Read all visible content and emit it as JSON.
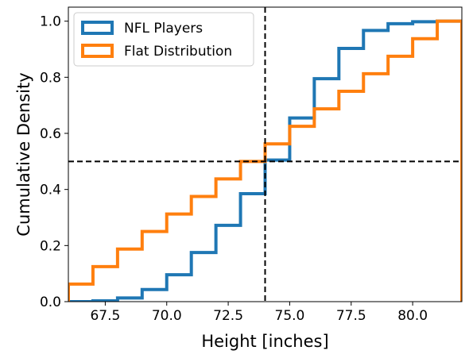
{
  "chart_data": {
    "type": "step",
    "title": "",
    "xlabel": "Height [inches]",
    "ylabel": "Cumulative Density",
    "xlim": [
      66,
      82
    ],
    "ylim": [
      0,
      1.05
    ],
    "x_ticks": [
      67.5,
      70.0,
      72.5,
      75.0,
      77.5,
      80.0
    ],
    "x_tick_labels": [
      "67.5",
      "70.0",
      "72.5",
      "75.0",
      "77.5",
      "80.0"
    ],
    "y_ticks": [
      0.0,
      0.2,
      0.4,
      0.6,
      0.8,
      1.0
    ],
    "y_tick_labels": [
      "0.0",
      "0.2",
      "0.4",
      "0.6",
      "0.8",
      "1.0"
    ],
    "legend_position": "top-left",
    "grid": false,
    "series": [
      {
        "name": "NFL Players",
        "color": "#1f77b4",
        "edges": [
          66,
          67,
          68,
          69,
          70,
          71,
          72,
          73,
          74,
          75,
          76,
          77,
          78,
          79,
          80,
          81,
          82
        ],
        "values": [
          0.0,
          0.003,
          0.013,
          0.043,
          0.096,
          0.175,
          0.272,
          0.385,
          0.505,
          0.655,
          0.795,
          0.903,
          0.967,
          0.991,
          0.998,
          1.0
        ]
      },
      {
        "name": "Flat Distribution",
        "color": "#ff7f0e",
        "edges": [
          66,
          67,
          68,
          69,
          70,
          71,
          72,
          73,
          74,
          75,
          76,
          77,
          78,
          79,
          80,
          81,
          82
        ],
        "values": [
          0.0625,
          0.125,
          0.1875,
          0.25,
          0.3125,
          0.375,
          0.4375,
          0.5,
          0.5625,
          0.625,
          0.6875,
          0.75,
          0.8125,
          0.875,
          0.9375,
          1.0
        ]
      }
    ],
    "reference_lines": [
      {
        "orientation": "vertical",
        "value": 74,
        "style": "dashed",
        "color": "#000000"
      },
      {
        "orientation": "horizontal",
        "value": 0.5,
        "style": "dashed",
        "color": "#000000"
      }
    ]
  }
}
